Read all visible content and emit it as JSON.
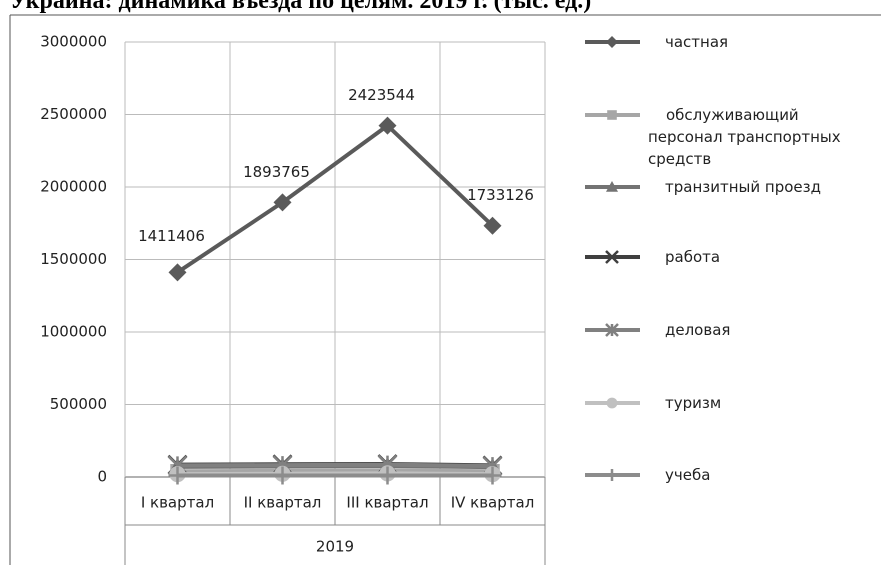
{
  "chart_data": {
    "type": "line",
    "title": "Украина: динамика въезда по целям. 2019 г. (тыс. ед.)",
    "categories": [
      "I квартал",
      "II квартал",
      "III квартал",
      "IV квартал"
    ],
    "group_label": "2019",
    "ylim": [
      0,
      3000000
    ],
    "yticks": [
      0,
      500000,
      1000000,
      1500000,
      2000000,
      2500000,
      3000000
    ],
    "grid": true,
    "legend": "right",
    "series": [
      {
        "name": "частная",
        "color": "#5a5a5a",
        "marker": "diamond",
        "values": [
          1411406,
          1893765,
          2423544,
          1733126
        ],
        "data_labels": true
      },
      {
        "name": "обслуживающий персонал транспортных средств",
        "color": "#a6a6a6",
        "marker": "square",
        "values": [
          40000,
          42000,
          45000,
          40000
        ]
      },
      {
        "name": "транзитный проезд",
        "color": "#737373",
        "marker": "triangle",
        "values": [
          70000,
          72000,
          75000,
          68000
        ]
      },
      {
        "name": "работа",
        "color": "#3f3f3f",
        "marker": "x",
        "values": [
          85000,
          88000,
          90000,
          80000
        ]
      },
      {
        "name": "деловая",
        "color": "#808080",
        "marker": "star",
        "values": [
          80000,
          82000,
          85000,
          75000
        ]
      },
      {
        "name": "туризм",
        "color": "#c0c0c0",
        "marker": "circle",
        "values": [
          20000,
          22000,
          25000,
          20000
        ]
      },
      {
        "name": "учеба",
        "color": "#8c8c8c",
        "marker": "plus",
        "values": [
          10000,
          10000,
          10000,
          10000
        ]
      }
    ]
  }
}
